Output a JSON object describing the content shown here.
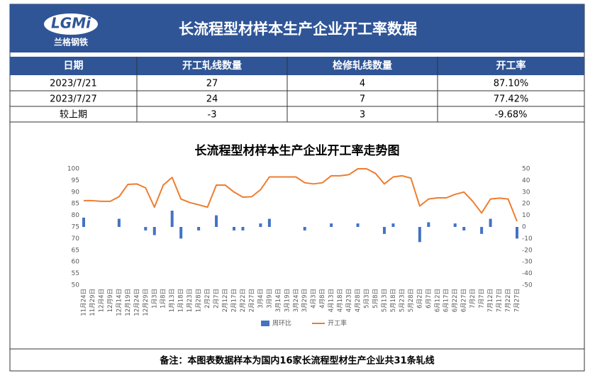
{
  "header": {
    "logo": "LGMi",
    "logo_sub": "兰格钢铁",
    "title": "长流程型材样本生产企业开工率数据"
  },
  "table": {
    "columns": [
      "日期",
      "开工轧线数量",
      "检修轧线数量",
      "开工率"
    ],
    "rows": [
      [
        "2023/7/21",
        "27",
        "4",
        "87.10%"
      ],
      [
        "2023/7/27",
        "24",
        "7",
        "77.42%"
      ],
      [
        "较上期",
        "-3",
        "3",
        "-9.68%"
      ]
    ]
  },
  "chart_data": {
    "type": "combo",
    "title": "长流程型材样本生产企业开工率走势图",
    "categories": [
      "11月24日",
      "11月29日",
      "12月4日",
      "12月9日",
      "12月14日",
      "12月19日",
      "12月24日",
      "12月29日",
      "1月3日",
      "1月8日",
      "1月13日",
      "1月18日",
      "1月23日",
      "1月28日",
      "2月2日",
      "2月7日",
      "2月12日",
      "2月17日",
      "2月22日",
      "2月27日",
      "3月4日",
      "3月9日",
      "3月14日",
      "3月19日",
      "3月24日",
      "3月29日",
      "4月3日",
      "4月8日",
      "4月13日",
      "4月18日",
      "4月23日",
      "4月28日",
      "5月3日",
      "5月8日",
      "5月13日",
      "5月18日",
      "5月23日",
      "5月28日",
      "6月2日",
      "6月7日",
      "6月12日",
      "6月17日",
      "6月22日",
      "6月27日",
      "7月2日",
      "7月7日",
      "7月12日",
      "7月17日",
      "7月22日",
      "7月27日"
    ],
    "series": [
      {
        "name": "周环比",
        "type": "bar",
        "axis": "y2",
        "color": "#4472c4",
        "values": [
          8,
          null,
          null,
          null,
          7,
          null,
          null,
          -3,
          -7,
          null,
          14,
          -10,
          null,
          -3,
          null,
          10,
          null,
          -3,
          -3,
          null,
          3,
          7,
          null,
          null,
          null,
          -3,
          null,
          null,
          3,
          null,
          null,
          3,
          null,
          null,
          -6,
          3,
          null,
          null,
          -13,
          4,
          null,
          null,
          3,
          -3,
          null,
          -6,
          7,
          null,
          null,
          -10
        ]
      },
      {
        "name": "开工率",
        "type": "line",
        "color": "#ed7d31",
        "values": [
          86.3,
          86.3,
          86,
          86,
          88,
          93.3,
          93.5,
          91.8,
          83.5,
          93,
          96.3,
          87,
          85.5,
          84.5,
          83.5,
          93,
          93,
          90,
          87.8,
          88,
          91,
          96.5,
          96.5,
          96.5,
          96.5,
          94,
          93.5,
          94,
          97,
          97,
          97.5,
          100,
          100,
          98,
          93.5,
          96.5,
          97,
          96,
          84,
          87,
          87.5,
          87.5,
          89,
          90,
          86,
          81,
          87,
          87.4,
          87,
          77.42
        ]
      }
    ],
    "ylim": [
      50,
      100
    ],
    "yticks": [
      50,
      55,
      60,
      65,
      70,
      75,
      80,
      85,
      90,
      95,
      100
    ],
    "y2lim": [
      -50,
      50
    ],
    "y2ticks": [
      -50,
      -40,
      -30,
      -20,
      -10,
      0,
      10,
      20,
      30,
      40,
      50
    ],
    "legend": "bottom"
  },
  "footer": "备注：本图表数据样本为国内16家长流程型材生产企业共31条轧线"
}
